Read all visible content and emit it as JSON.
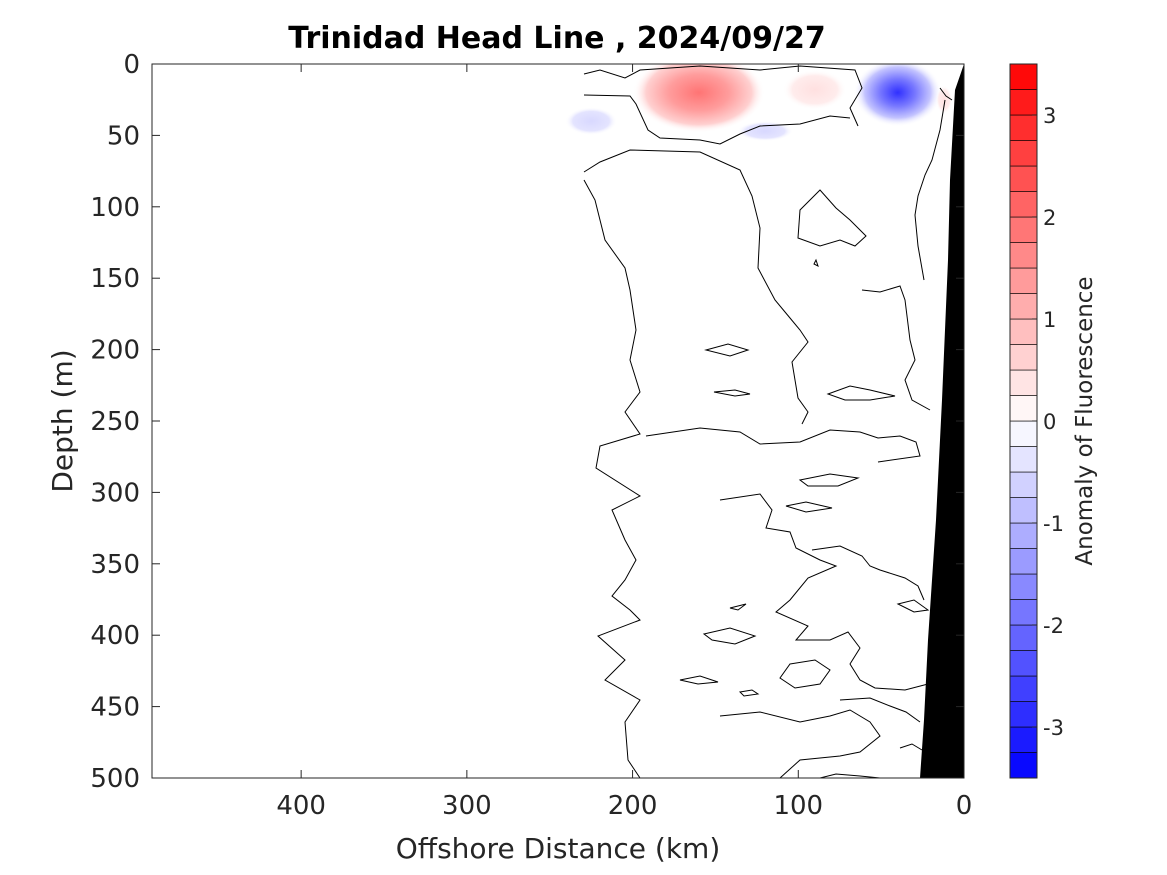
{
  "chart_data": {
    "type": "heatmap",
    "title": "Trinidad Head Line , 2024/09/27",
    "xlabel": "Offshore Distance (km)",
    "ylabel": "Depth (m)",
    "xlim": [
      490,
      0
    ],
    "ylim": [
      0,
      500
    ],
    "x_reversed": true,
    "y_reversed": true,
    "x_ticks": [
      400,
      300,
      200,
      100,
      0
    ],
    "y_ticks": [
      0,
      50,
      100,
      150,
      200,
      250,
      300,
      350,
      400,
      450,
      500
    ],
    "colorbar": {
      "label": "Anomaly of Fluorescence",
      "range": [
        -3.5,
        3.5
      ],
      "step": 0.25,
      "ticks": [
        -3,
        -2,
        -1,
        0,
        1,
        2,
        3
      ],
      "low_color": "#0000ff",
      "mid_color": "#ffffff",
      "high_color": "#ff0000"
    },
    "data_extent_km": [
      232,
      0
    ],
    "anomaly_features": [
      {
        "sign": "positive",
        "distance_km": 160,
        "depth_m": 20,
        "peak": 2.0
      },
      {
        "sign": "positive",
        "distance_km": 90,
        "depth_m": 18,
        "peak": 0.5
      },
      {
        "sign": "negative",
        "distance_km": 40,
        "depth_m": 20,
        "peak": -2.0
      },
      {
        "sign": "negative",
        "distance_km": 225,
        "depth_m": 40,
        "peak": -0.5
      },
      {
        "sign": "negative",
        "distance_km": 120,
        "depth_m": 47,
        "peak": -0.5
      },
      {
        "sign": "positive",
        "distance_km": 12,
        "depth_m": 25,
        "peak": 0.5
      }
    ],
    "bathymetry_color": "#000000",
    "contour_color": "#000000",
    "grid": false
  }
}
